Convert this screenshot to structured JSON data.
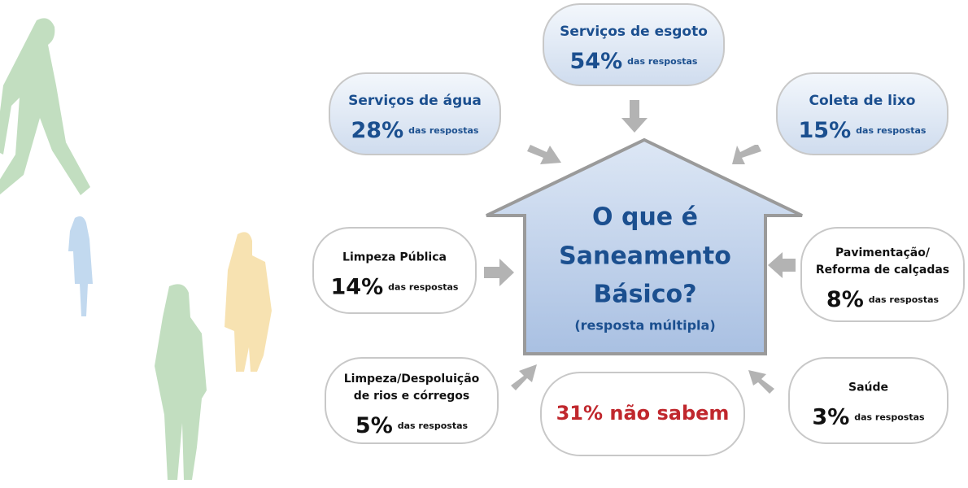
{
  "center": {
    "lines": [
      "O que é",
      "Saneamento",
      "Básico?"
    ],
    "note": "(resposta múltipla)"
  },
  "items": [
    {
      "name": [
        "Serviços de água"
      ],
      "percent": "28%",
      "note": "das respostas"
    },
    {
      "name": [
        "Serviços de esgoto"
      ],
      "percent": "54%",
      "note": "das respostas"
    },
    {
      "name": [
        "Coleta de lixo"
      ],
      "percent": "15%",
      "note": "das respostas"
    },
    {
      "name": [
        "Limpeza Pública"
      ],
      "percent": "14%",
      "note": "das respostas"
    },
    {
      "name": [
        "Pavimentação/",
        "Reforma de calçadas"
      ],
      "percent": "8%",
      "note": "das respostas"
    },
    {
      "name": [
        "Limpeza/Despoluição",
        "de rios e córregos"
      ],
      "percent": "5%",
      "note": "das respostas"
    },
    {
      "name": [
        "Saúde"
      ],
      "percent": "3%",
      "note": "das respostas"
    }
  ],
  "unknown": "31% não sabem"
}
